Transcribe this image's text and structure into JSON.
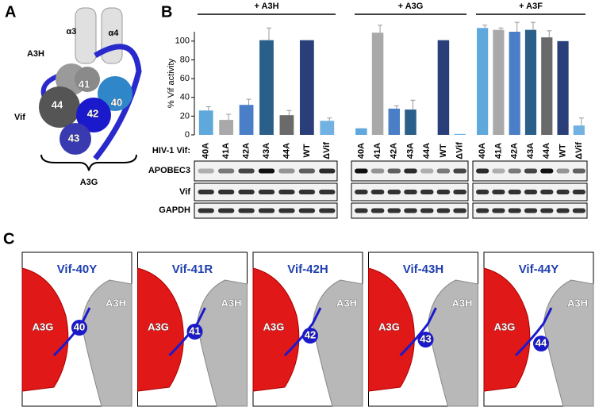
{
  "panel_a": {
    "letter": "A",
    "labels": [
      "α3",
      "α4",
      "A3H",
      "41",
      "44",
      "40",
      "42",
      "43",
      "Vif"
    ],
    "bracket_label": "A3G"
  },
  "panel_b": {
    "letter": "B",
    "ylabel": "% Vif activity",
    "row_header": "HIV-1 Vif:",
    "blot_rows": [
      "APOBEC3",
      "Vif",
      "GAPDH"
    ]
  },
  "panel_c": {
    "letter": "C",
    "boxes": [
      {
        "title": "Vif-40Y",
        "left": "A3G",
        "right": "A3H",
        "residue": "40"
      },
      {
        "title": "Vif-41R",
        "left": "A3G",
        "right": "A3H",
        "residue": "41"
      },
      {
        "title": "Vif-42H",
        "left": "A3G",
        "right": "A3H",
        "residue": "42"
      },
      {
        "title": "Vif-43H",
        "left": "A3G",
        "right": "A3H",
        "residue": "43"
      },
      {
        "title": "Vif-44Y",
        "left": "A3G",
        "right": "A3H",
        "residue": "44"
      }
    ]
  },
  "chart_data": [
    {
      "type": "bar",
      "title": "+ A3H",
      "categories": [
        "40A",
        "41A",
        "42A",
        "43A",
        "44A",
        "WT",
        "ΔVif"
      ],
      "values": [
        26,
        16,
        32,
        101,
        21,
        101,
        15
      ],
      "errors": [
        4,
        6,
        6,
        13,
        5,
        0,
        3
      ],
      "colors": [
        "#5fa8dc",
        "#a9a9a9",
        "#4a7fc8",
        "#2a5f8a",
        "#6a6a6a",
        "#2a3f7a",
        "#72b2e2"
      ],
      "ylim": [
        0,
        110
      ],
      "yticks": [
        0,
        20,
        40,
        60,
        80,
        100
      ]
    },
    {
      "type": "bar",
      "title": "+ A3G",
      "categories": [
        "40A",
        "41A",
        "42A",
        "43A",
        "44A",
        "WT",
        "ΔVif"
      ],
      "values": [
        7,
        109,
        28,
        27,
        0,
        101,
        1
      ],
      "errors": [
        0,
        8,
        3,
        10,
        0,
        0,
        0
      ],
      "colors": [
        "#5fa8dc",
        "#a9a9a9",
        "#4a7fc8",
        "#2a5f8a",
        "#6a6a6a",
        "#2a3f7a",
        "#72b2e2"
      ],
      "ylim": [
        0,
        110
      ]
    },
    {
      "type": "bar",
      "title": "+ A3F",
      "categories": [
        "40A",
        "41A",
        "42A",
        "43A",
        "44A",
        "WT",
        "ΔVif"
      ],
      "values": [
        114,
        112,
        110,
        112,
        104,
        100,
        10
      ],
      "errors": [
        3,
        2,
        10,
        8,
        7,
        0,
        8
      ],
      "colors": [
        "#5fa8dc",
        "#a9a9a9",
        "#4a7fc8",
        "#2a5f8a",
        "#6a6a6a",
        "#2a3f7a",
        "#72b2e2"
      ],
      "ylim": [
        0,
        110
      ]
    }
  ]
}
